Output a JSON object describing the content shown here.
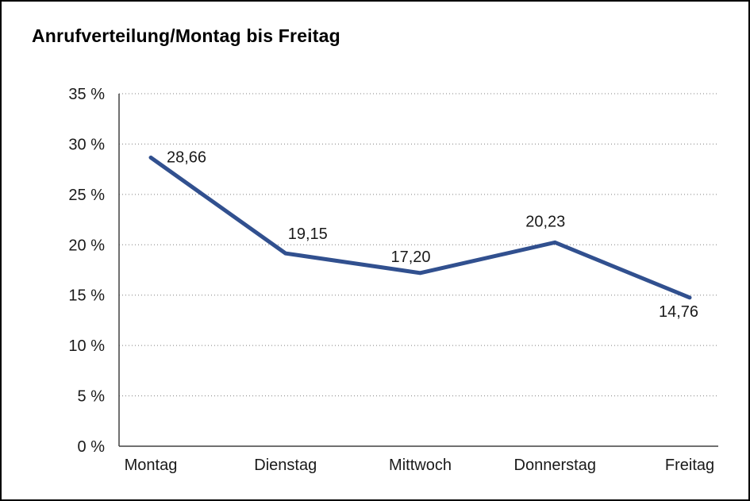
{
  "frame": {
    "background": "#ffffff",
    "border_color": "#000000"
  },
  "chart_data": {
    "type": "line",
    "title": "Anrufverteilung/Montag bis Freitag",
    "categories": [
      "Montag",
      "Dienstag",
      "Mittwoch",
      "Donnerstag",
      "Freitag"
    ],
    "series": [
      {
        "name": "Anrufverteilung",
        "values": [
          28.66,
          19.15,
          17.2,
          20.23,
          14.76
        ]
      }
    ],
    "point_labels": [
      "28,66",
      "19,15",
      "17,20",
      "20,23",
      "14,76"
    ],
    "xlabel": "",
    "ylabel": "",
    "ylim": [
      0,
      35
    ],
    "ytick_step": 5,
    "ytick_labels": [
      "0 %",
      "5 %",
      "10 %",
      "15 %",
      "20 %",
      "25 %",
      "30 %",
      "35 %"
    ],
    "grid": "dotted-horizontal",
    "legend": "none",
    "line_color": "#31508F",
    "text_color": "#1a1a1a",
    "axis_color": "#404040",
    "grid_color": "#808080"
  }
}
